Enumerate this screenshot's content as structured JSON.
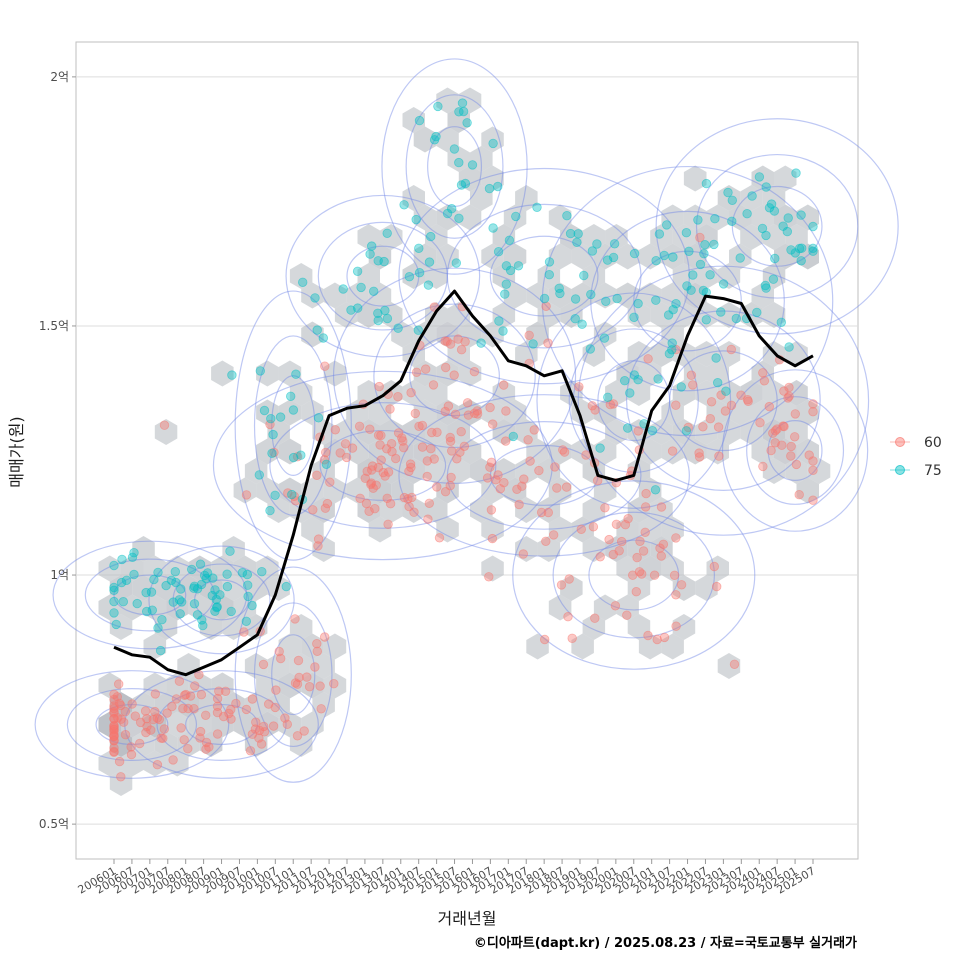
{
  "chart_data": {
    "type": "scatter",
    "title": "",
    "xlabel": "거래년월",
    "ylabel": "매매가(원)",
    "caption": "©디아파트(dapt.kr) / 2025.08.23 / 자료=국토교통부 실거래가",
    "x_ticks": [
      "200601",
      "200607",
      "200701",
      "200707",
      "200801",
      "200807",
      "200901",
      "200907",
      "201001",
      "201007",
      "201101",
      "201107",
      "201201",
      "201207",
      "201301",
      "201307",
      "201401",
      "201407",
      "201501",
      "201507",
      "201601",
      "201607",
      "201701",
      "201707",
      "201801",
      "201807",
      "201901",
      "201907",
      "202001",
      "202007",
      "202101",
      "202107",
      "202201",
      "202207",
      "202301",
      "202307",
      "202401",
      "202407",
      "202501",
      "202507"
    ],
    "y_ticks": [
      {
        "value": 0.5,
        "label": "0.5억"
      },
      {
        "value": 1.0,
        "label": "1억"
      },
      {
        "value": 1.5,
        "label": "1.5억"
      },
      {
        "value": 2.0,
        "label": "2억"
      }
    ],
    "ylim": [
      0.43,
      2.07
    ],
    "grid": true,
    "legend": {
      "position": "right",
      "entries": [
        {
          "name": "60",
          "color": "#F8766D"
        },
        {
          "name": "75",
          "color": "#00BFC4"
        }
      ]
    },
    "trend_line": {
      "color": "#000000",
      "points": [
        [
          "200601",
          0.855
        ],
        [
          "200607",
          0.84
        ],
        [
          "200701",
          0.835
        ],
        [
          "200707",
          0.81
        ],
        [
          "200801",
          0.8
        ],
        [
          "200807",
          0.815
        ],
        [
          "200901",
          0.83
        ],
        [
          "200907",
          0.855
        ],
        [
          "201001",
          0.88
        ],
        [
          "201007",
          0.96
        ],
        [
          "201101",
          1.08
        ],
        [
          "201107",
          1.22
        ],
        [
          "201201",
          1.32
        ],
        [
          "201207",
          1.335
        ],
        [
          "201301",
          1.34
        ],
        [
          "201307",
          1.36
        ],
        [
          "201401",
          1.39
        ],
        [
          "201407",
          1.47
        ],
        [
          "201501",
          1.53
        ],
        [
          "201507",
          1.57
        ],
        [
          "201601",
          1.52
        ],
        [
          "201607",
          1.48
        ],
        [
          "201701",
          1.43
        ],
        [
          "201707",
          1.42
        ],
        [
          "201801",
          1.4
        ],
        [
          "201807",
          1.41
        ],
        [
          "201901",
          1.32
        ],
        [
          "201907",
          1.2
        ],
        [
          "202001",
          1.19
        ],
        [
          "202007",
          1.2
        ],
        [
          "202101",
          1.33
        ],
        [
          "202107",
          1.38
        ],
        [
          "202201",
          1.48
        ],
        [
          "202207",
          1.56
        ],
        [
          "202301",
          1.555
        ],
        [
          "202307",
          1.545
        ],
        [
          "202401",
          1.48
        ],
        [
          "202407",
          1.44
        ],
        [
          "202501",
          1.42
        ],
        [
          "202507",
          1.44
        ]
      ]
    },
    "series": [
      {
        "name": "60",
        "color": "#F8766D",
        "clusters": [
          {
            "x": "200607",
            "y": 0.7,
            "n": 60,
            "sx": 2.0,
            "sy": 0.04
          },
          {
            "x": "200901",
            "y": 0.7,
            "n": 40,
            "sx": 2.0,
            "sy": 0.04
          },
          {
            "x": "201101",
            "y": 0.8,
            "n": 25,
            "sx": 1.2,
            "sy": 0.08
          },
          {
            "x": "201307",
            "y": 1.22,
            "n": 90,
            "sx": 3.5,
            "sy": 0.07
          },
          {
            "x": "201507",
            "y": 1.4,
            "n": 40,
            "sx": 2.5,
            "sy": 0.08
          },
          {
            "x": "201801",
            "y": 1.2,
            "n": 35,
            "sx": 3.0,
            "sy": 0.06
          },
          {
            "x": "202007",
            "y": 1.0,
            "n": 45,
            "sx": 2.5,
            "sy": 0.07
          },
          {
            "x": "202301",
            "y": 1.35,
            "n": 35,
            "sx": 3.0,
            "sy": 0.1
          },
          {
            "x": "202501",
            "y": 1.25,
            "n": 20,
            "sx": 1.5,
            "sy": 0.06
          }
        ]
      },
      {
        "name": "75",
        "color": "#00BFC4",
        "clusters": [
          {
            "x": "200701",
            "y": 0.96,
            "n": 35,
            "sx": 2.0,
            "sy": 0.04
          },
          {
            "x": "200901",
            "y": 0.95,
            "n": 30,
            "sx": 1.5,
            "sy": 0.04
          },
          {
            "x": "201101",
            "y": 1.3,
            "n": 20,
            "sx": 1.2,
            "sy": 0.1
          },
          {
            "x": "201307",
            "y": 1.6,
            "n": 25,
            "sx": 2.0,
            "sy": 0.06
          },
          {
            "x": "201507",
            "y": 1.82,
            "n": 20,
            "sx": 1.5,
            "sy": 0.08
          },
          {
            "x": "201801",
            "y": 1.6,
            "n": 40,
            "sx": 3.0,
            "sy": 0.08
          },
          {
            "x": "202007",
            "y": 1.35,
            "n": 15,
            "sx": 2.0,
            "sy": 0.08
          },
          {
            "x": "202201",
            "y": 1.55,
            "n": 40,
            "sx": 3.0,
            "sy": 0.1
          },
          {
            "x": "202407",
            "y": 1.7,
            "n": 30,
            "sx": 2.5,
            "sy": 0.08
          }
        ]
      }
    ]
  }
}
